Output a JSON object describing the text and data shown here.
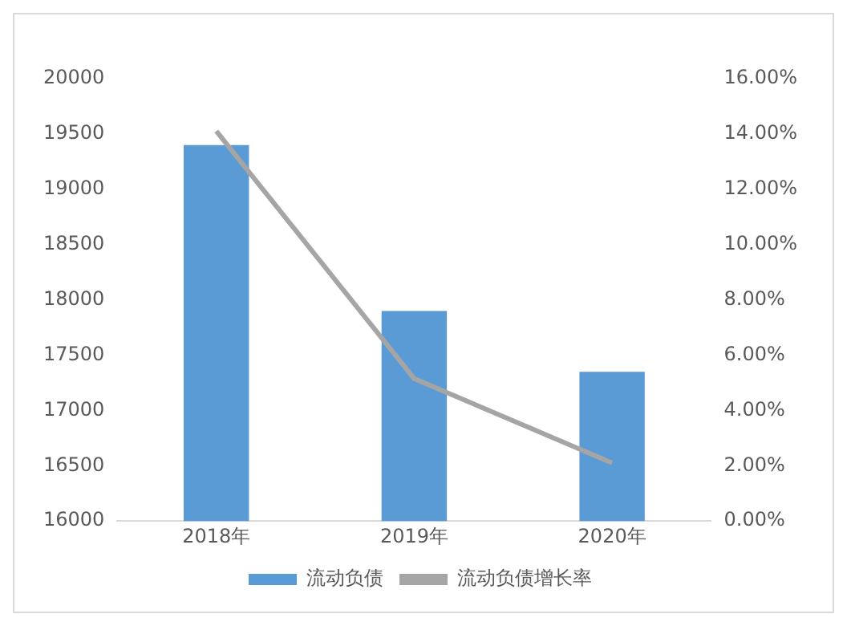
{
  "chart_data": {
    "type": "bar",
    "categories": [
      "2018年",
      "2019年",
      "2020年"
    ],
    "series": [
      {
        "name": "流动负债",
        "color": "#5b9bd5",
        "values": [
          19400,
          17900,
          17350
        ]
      },
      {
        "name": "流动负债增长率",
        "type": "line",
        "axis": "y2",
        "color": "#a5a5a5",
        "values": [
          14.1,
          5.15,
          2.1
        ]
      }
    ],
    "ylim": [
      16000,
      20000
    ],
    "yticks": [
      16000,
      16500,
      17000,
      17500,
      18000,
      18500,
      19000,
      19500,
      20000
    ],
    "y2lim": [
      0,
      16
    ],
    "y2ticks": [
      {
        "value": 0,
        "label": "0.00%"
      },
      {
        "value": 2,
        "label": "2.00%"
      },
      {
        "value": 4,
        "label": "4.00%"
      },
      {
        "value": 6,
        "label": "6.00%"
      },
      {
        "value": 8,
        "label": "8.00%"
      },
      {
        "value": 10,
        "label": "10.00%"
      },
      {
        "value": 12,
        "label": "12.00%"
      },
      {
        "value": 14,
        "label": "14.00%"
      },
      {
        "value": 16,
        "label": "16.00%"
      }
    ],
    "grid": false,
    "legend": "bottom",
    "marker": "none"
  }
}
